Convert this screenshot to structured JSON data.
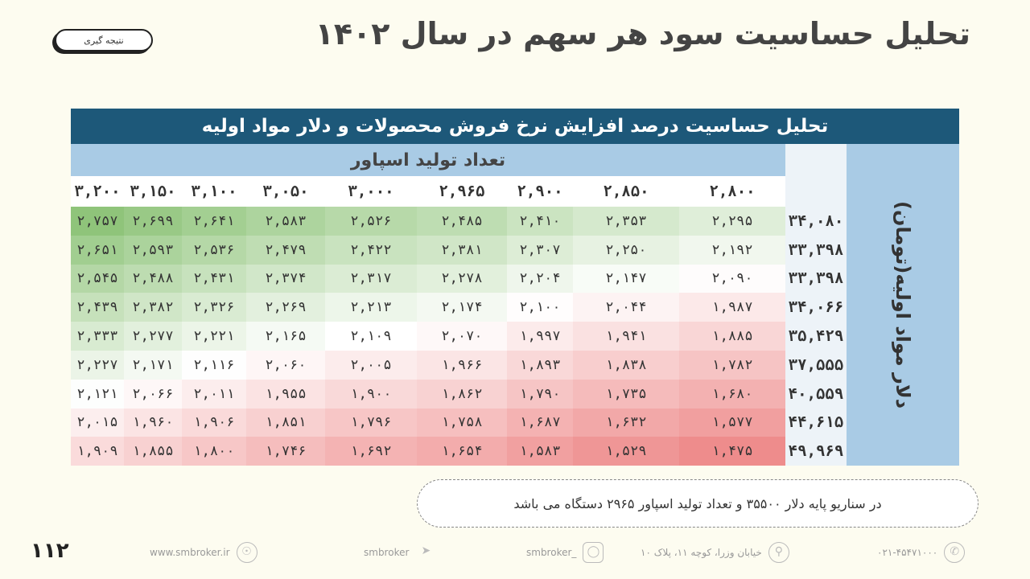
{
  "title": "تحلیل حساسیت سود هر سهم در سال ۱۴۰۲",
  "tag_button": "نتیجه گیری",
  "table": {
    "main_header": "تحلیل حساسیت درصد افزایش نرخ فروش محصولات و دلار مواد اولیه",
    "sub_header": "تعداد تولید اسپاور",
    "side_label": "دلار مواد اولیه(تومان)",
    "columns": [
      "۲,۸۰۰",
      "۲,۸۵۰",
      "۲,۹۰۰",
      "۲,۹۶۵",
      "۳,۰۰۰",
      "۳,۰۵۰",
      "۳,۱۰۰",
      "۳,۱۵۰",
      "۳,۲۰۰"
    ],
    "rows": [
      {
        "label": "۳۴,۰۸۰",
        "values": [
          "۲,۲۹۵",
          "۲,۳۵۳",
          "۲,۴۱۰",
          "۲,۴۸۵",
          "۲,۵۲۶",
          "۲,۵۸۳",
          "۲,۶۴۱",
          "۲,۶۹۹",
          "۲,۷۵۷"
        ]
      },
      {
        "label": "۳۳,۳۹۸",
        "values": [
          "۲,۱۹۲",
          "۲,۲۵۰",
          "۲,۳۰۷",
          "۲,۳۸۱",
          "۲,۴۲۲",
          "۲,۴۷۹",
          "۲,۵۳۶",
          "۲,۵۹۳",
          "۲,۶۵۱"
        ]
      },
      {
        "label": "۳۳,۳۹۸",
        "values": [
          "۲,۰۹۰",
          "۲,۱۴۷",
          "۲,۲۰۴",
          "۲,۲۷۸",
          "۲,۳۱۷",
          "۲,۳۷۴",
          "۲,۴۳۱",
          "۲,۴۸۸",
          "۲,۵۴۵"
        ]
      },
      {
        "label": "۳۴,۰۶۶",
        "values": [
          "۱,۹۸۷",
          "۲,۰۴۴",
          "۲,۱۰۰",
          "۲,۱۷۴",
          "۲,۲۱۳",
          "۲,۲۶۹",
          "۲,۳۲۶",
          "۲,۳۸۲",
          "۲,۴۳۹"
        ]
      },
      {
        "label": "۳۵,۴۲۹",
        "values": [
          "۱,۸۸۵",
          "۱,۹۴۱",
          "۱,۹۹۷",
          "۲,۰۷۰",
          "۲,۱۰۹",
          "۲,۱۶۵",
          "۲,۲۲۱",
          "۲,۲۷۷",
          "۲,۳۳۳"
        ]
      },
      {
        "label": "۳۷,۵۵۵",
        "values": [
          "۱,۷۸۲",
          "۱,۸۳۸",
          "۱,۸۹۳",
          "۱,۹۶۶",
          "۲,۰۰۵",
          "۲,۰۶۰",
          "۲,۱۱۶",
          "۲,۱۷۱",
          "۲,۲۲۷"
        ]
      },
      {
        "label": "۴۰,۵۵۹",
        "values": [
          "۱,۶۸۰",
          "۱,۷۳۵",
          "۱,۷۹۰",
          "۱,۸۶۲",
          "۱,۹۰۰",
          "۱,۹۵۵",
          "۲,۰۱۱",
          "۲,۰۶۶",
          "۲,۱۲۱"
        ]
      },
      {
        "label": "۴۴,۶۱۵",
        "values": [
          "۱,۵۷۷",
          "۱,۶۳۲",
          "۱,۶۸۷",
          "۱,۷۵۸",
          "۱,۷۹۶",
          "۱,۸۵۱",
          "۱,۹۰۶",
          "۱,۹۶۰",
          "۲,۰۱۵"
        ]
      },
      {
        "label": "۴۹,۹۶۹",
        "values": [
          "۱,۴۷۵",
          "۱,۵۲۹",
          "۱,۵۸۳",
          "۱,۶۵۴",
          "۱,۶۹۲",
          "۱,۷۴۶",
          "۱,۸۰۰",
          "۱,۸۵۵",
          "۱,۹۰۹"
        ]
      }
    ],
    "colors": {
      "high": "#8fc47a",
      "mid": "#ffffff",
      "low": "#ee8c8c"
    }
  },
  "note": "در سناریو پایه دلار ۳۵۵۰۰ و تعداد تولید اسپاور ۲۹۶۵ دستگاه می باشد",
  "footer": {
    "phone": "۰۲۱-۴۵۴۷۱۰۰۰",
    "address": "خیابان وزرا، کوچه ۱۱، پلاک ۱۰",
    "instagram": "smbroker_",
    "telegram": "smbroker",
    "website": "www.smbroker.ir",
    "page_number": "۱۱۲"
  }
}
